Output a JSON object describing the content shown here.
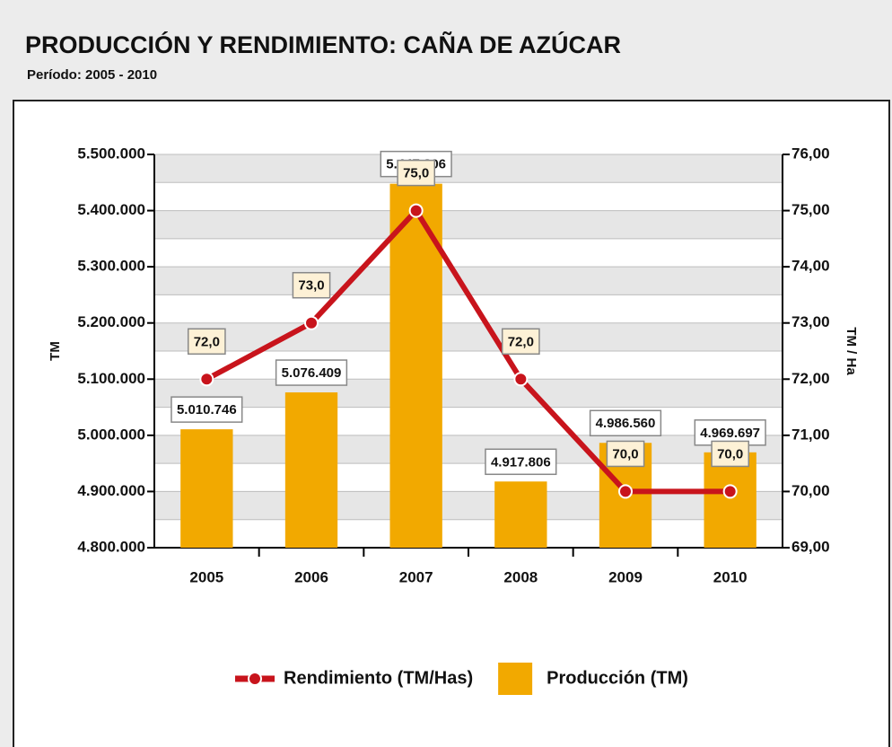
{
  "chart_data": {
    "type": "combo",
    "title": "PRODUCCIÓN Y RENDIMIENTO: CAÑA DE AZÚCAR",
    "subtitle": "Período: 2005 - 2010",
    "y_label": "TM",
    "y2_label": "TM / Ha",
    "categories": [
      "2005",
      "2006",
      "2007",
      "2008",
      "2009",
      "2010"
    ],
    "series": [
      {
        "name": "Rendimiento (TM/Has)",
        "type": "line",
        "axis": "y2",
        "color": "#c8141c",
        "values": [
          72,
          73,
          75,
          72,
          70,
          70
        ],
        "value_labels": [
          "72,0",
          "73,0",
          "75,0",
          "72,0",
          "70,0",
          "70,0"
        ]
      },
      {
        "name": "Producción (TM)",
        "type": "bar",
        "axis": "y",
        "color": "#f2a900",
        "values": [
          5010746,
          5076409,
          5447806,
          4917806,
          4986560,
          4969697
        ],
        "value_labels": [
          "5.010.746",
          "5.076.409",
          "5.447.806",
          "4.917.806",
          "4.986.560",
          "4.969.697"
        ]
      }
    ],
    "ylim": [
      4800000,
      5500000
    ],
    "yticks": [
      {
        "value": 4800000,
        "label": "4.800.000"
      },
      {
        "value": 4900000,
        "label": "4.900.000"
      },
      {
        "value": 5000000,
        "label": "5.000.000"
      },
      {
        "value": 5100000,
        "label": "5.100.000"
      },
      {
        "value": 5200000,
        "label": "5.200.000"
      },
      {
        "value": 5300000,
        "label": "5.300.000"
      },
      {
        "value": 5400000,
        "label": "5.400.000"
      },
      {
        "value": 5500000,
        "label": "5.500.000"
      }
    ],
    "y2lim": [
      69,
      76
    ],
    "y2ticks": [
      {
        "value": 69,
        "label": "69,00"
      },
      {
        "value": 70,
        "label": "70,00"
      },
      {
        "value": 71,
        "label": "71,00"
      },
      {
        "value": 72,
        "label": "72,00"
      },
      {
        "value": 73,
        "label": "73,00"
      },
      {
        "value": 74,
        "label": "74,00"
      },
      {
        "value": 75,
        "label": "75,00"
      },
      {
        "value": 76,
        "label": "76,00"
      }
    ],
    "grid": true,
    "legend": "bottom"
  }
}
